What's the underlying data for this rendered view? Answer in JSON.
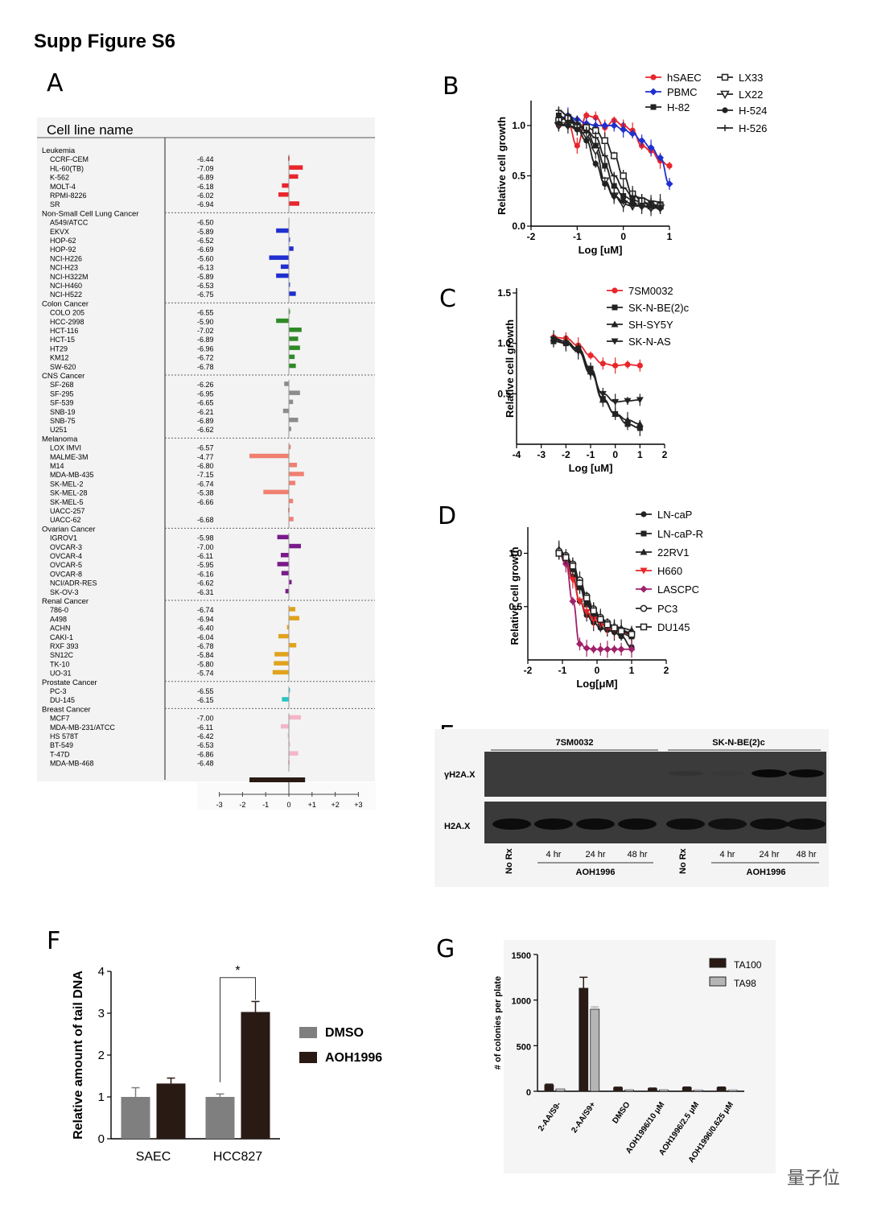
{
  "figure_title": "Supp Figure S6",
  "panel_labels": [
    "A",
    "B",
    "C",
    "D",
    "E",
    "F",
    "G"
  ],
  "watermark": "量子位",
  "chart_data": [
    {
      "panel": "A",
      "type": "bar",
      "header": "Cell line name",
      "axis_ticks": [
        "+3",
        "+2",
        "+1",
        "0",
        "-1",
        "-2",
        "-3"
      ],
      "xlim": [
        3,
        -3
      ],
      "colors": {
        "Leukemia": "#e8262b",
        "Non-Small Cell Lung Cancer": "#1f2fd0",
        "Colon Cancer": "#2f8a25",
        "CNS Cancer": "#8c8c8c",
        "Melanoma": "#f08070",
        "Ovarian Cancer": "#7a1a8a",
        "Renal Cancer": "#e0a31c",
        "Prostate Cancer": "#27c4c4",
        "Breast Cancer": "#f4b6c8"
      },
      "groups": [
        {
          "name": "Leukemia",
          "lines": [
            [
              "CCRF-CEM",
              "-6.44",
              0.0
            ],
            [
              "HL-60(TB)",
              "-7.09",
              0.6
            ],
            [
              "K-562",
              "-6.89",
              0.4
            ],
            [
              "MOLT-4",
              "-6.18",
              -0.3
            ],
            [
              "RPMI-8226",
              "-6.02",
              -0.45
            ],
            [
              "SR",
              "-6.94",
              0.45
            ]
          ]
        },
        {
          "name": "Non-Small Cell Lung Cancer",
          "lines": [
            [
              "A549/ATCC",
              "-6.50",
              0.02
            ],
            [
              "EKVX",
              "-5.89",
              -0.55
            ],
            [
              "HOP-62",
              "-6.52",
              0.05
            ],
            [
              "HOP-92",
              "-6.69",
              0.2
            ],
            [
              "NCI-H226",
              "-5.60",
              -0.85
            ],
            [
              "NCI-H23",
              "-6.13",
              -0.35
            ],
            [
              "NCI-H322M",
              "-5.89",
              -0.55
            ],
            [
              "NCI-H460",
              "-6.53",
              0.05
            ],
            [
              "NCI-H522",
              "-6.75",
              0.3
            ]
          ]
        },
        {
          "name": "Colon Cancer",
          "lines": [
            [
              "COLO 205",
              "-6.55",
              0.05
            ],
            [
              "HCC-2998",
              "-5.90",
              -0.55
            ],
            [
              "HCT-116",
              "-7.02",
              0.55
            ],
            [
              "HCT-15",
              "-6.89",
              0.4
            ],
            [
              "HT29",
              "-6.96",
              0.48
            ],
            [
              "KM12",
              "-6.72",
              0.25
            ],
            [
              "SW-620",
              "-6.78",
              0.3
            ]
          ]
        },
        {
          "name": "CNS Cancer",
          "lines": [
            [
              "SF-268",
              "-6.26",
              -0.2
            ],
            [
              "SF-295",
              "-6.95",
              0.48
            ],
            [
              "SF-539",
              "-6.65",
              0.18
            ],
            [
              "SNB-19",
              "-6.21",
              -0.25
            ],
            [
              "SNB-75",
              "-6.89",
              0.4
            ],
            [
              "U251",
              "-6.62",
              0.1
            ]
          ]
        },
        {
          "name": "Melanoma",
          "lines": [
            [
              "LOX IMVI",
              "-6.57",
              0.08
            ],
            [
              "MALME-3M",
              "-4.77",
              -1.7
            ],
            [
              "M14",
              "-6.80",
              0.35
            ],
            [
              "MDA-MB-435",
              "-7.15",
              0.65
            ],
            [
              "SK-MEL-2",
              "-6.74",
              0.28
            ],
            [
              "SK-MEL-28",
              "-5.38",
              -1.1
            ],
            [
              "SK-MEL-5",
              "-6.66",
              0.18
            ],
            [
              "UACC-257",
              "",
              0.0
            ],
            [
              "UACC-62",
              "-6.68",
              0.2
            ]
          ]
        },
        {
          "name": "Ovarian Cancer",
          "lines": [
            [
              "IGROV1",
              "-5.98",
              -0.5
            ],
            [
              "OVCAR-3",
              "-7.00",
              0.52
            ],
            [
              "OVCAR-4",
              "-6.11",
              -0.35
            ],
            [
              "OVCAR-5",
              "-5.95",
              -0.5
            ],
            [
              "OVCAR-8",
              "-6.16",
              -0.32
            ],
            [
              "NCI/ADR-RES",
              "-6.62",
              0.12
            ],
            [
              "SK-OV-3",
              "-6.31",
              -0.15
            ]
          ]
        },
        {
          "name": "Renal Cancer",
          "lines": [
            [
              "786-0",
              "-6.74",
              0.28
            ],
            [
              "A498",
              "-6.94",
              0.45
            ],
            [
              "ACHN",
              "-6.40",
              -0.08
            ],
            [
              "CAKI-1",
              "-6.04",
              -0.45
            ],
            [
              "RXF 393",
              "-6.78",
              0.32
            ],
            [
              "SN12C",
              "-5.84",
              -0.62
            ],
            [
              "TK-10",
              "-5.80",
              -0.65
            ],
            [
              "UO-31",
              "-5.74",
              -0.7
            ]
          ]
        },
        {
          "name": "Prostate Cancer",
          "lines": [
            [
              "PC-3",
              "-6.55",
              0.05
            ],
            [
              "DU-145",
              "-6.15",
              -0.3
            ]
          ]
        },
        {
          "name": "Breast Cancer",
          "lines": [
            [
              "MCF7",
              "-7.00",
              0.52
            ],
            [
              "MDA-MB-231/ATCC",
              "-6.11",
              -0.35
            ],
            [
              "HS 578T",
              "-6.42",
              -0.05
            ],
            [
              "BT-549",
              "-6.53",
              0.05
            ],
            [
              "T-47D",
              "-6.86",
              0.4
            ],
            [
              "MDA-MB-468",
              "-6.48",
              0.0
            ]
          ]
        }
      ],
      "summary_bar": [
        -1.7,
        0.7
      ]
    },
    {
      "panel": "B",
      "type": "line",
      "xlabel": "Log [uM]",
      "ylabel": "Relative cell growth",
      "xlim": [
        -2,
        1
      ],
      "ylim": [
        0,
        1.2
      ],
      "xticks": [
        "-2",
        "-1",
        "0",
        "1"
      ],
      "yticks": [
        "0.0",
        "0.5",
        "1.0"
      ],
      "x": [
        -1.4,
        -1.2,
        -1.0,
        -0.8,
        -0.6,
        -0.4,
        -0.2,
        0.0,
        0.2,
        0.4,
        0.6,
        0.8,
        1.0
      ],
      "series": [
        {
          "name": "hSAEC",
          "color": "#e8262b",
          "values": [
            1.0,
            1.02,
            0.8,
            1.1,
            1.08,
            0.98,
            1.05,
            1.0,
            0.95,
            0.8,
            0.75,
            0.65,
            0.6
          ]
        },
        {
          "name": "PBMC",
          "color": "#1f2fd0",
          "values": [
            1.05,
            1.1,
            1.06,
            1.02,
            1.0,
            1.0,
            1.0,
            0.96,
            0.92,
            0.85,
            0.78,
            0.68,
            0.42
          ]
        },
        {
          "name": "H-82",
          "color": "#222222",
          "values": [
            1.1,
            1.05,
            1.0,
            0.95,
            0.8,
            0.6,
            0.4,
            0.3,
            0.26,
            0.24,
            0.22,
            0.2,
            null
          ]
        },
        {
          "name": "LX33",
          "color": "#222222",
          "values": [
            1.05,
            1.08,
            1.0,
            0.98,
            0.95,
            0.85,
            0.7,
            0.5,
            0.32,
            0.25,
            0.2,
            0.2,
            null
          ]
        },
        {
          "name": "LX22",
          "color": "#222222",
          "values": [
            1.0,
            1.0,
            0.98,
            0.9,
            0.75,
            0.45,
            0.3,
            0.22,
            0.2,
            0.2,
            0.18,
            0.18,
            null
          ]
        },
        {
          "name": "H-524",
          "color": "#222222",
          "values": [
            1.02,
            1.0,
            0.96,
            0.85,
            0.62,
            0.42,
            0.3,
            0.25,
            0.22,
            0.2,
            0.2,
            0.18,
            null
          ]
        },
        {
          "name": "H-526",
          "color": "#222222",
          "values": [
            1.15,
            1.1,
            1.02,
            0.95,
            0.88,
            0.7,
            0.5,
            0.38,
            0.3,
            0.28,
            0.25,
            0.24,
            null
          ]
        }
      ]
    },
    {
      "panel": "C",
      "type": "line",
      "xlabel": "Log [uM]",
      "ylabel": "Relative cell growth",
      "xlim": [
        -4,
        2
      ],
      "ylim": [
        0,
        1.5
      ],
      "xticks": [
        "-4",
        "-3",
        "-2",
        "-1",
        "0",
        "1",
        "2"
      ],
      "yticks": [
        "0.5",
        "1.0",
        "1.5"
      ],
      "x": [
        -2.5,
        -2.0,
        -1.5,
        -1.0,
        -0.5,
        0.0,
        0.5,
        1.0
      ],
      "series": [
        {
          "name": "7SM0032",
          "color": "#e8262b",
          "values": [
            1.06,
            1.05,
            0.98,
            0.88,
            0.8,
            0.78,
            0.79,
            0.78
          ]
        },
        {
          "name": "SK-N-BE(2)c",
          "color": "#222222",
          "values": [
            1.02,
            1.0,
            0.95,
            0.75,
            0.45,
            0.3,
            0.2,
            0.16
          ]
        },
        {
          "name": "SH-SY5Y",
          "color": "#222222",
          "values": [
            1.05,
            1.02,
            0.94,
            0.72,
            0.44,
            0.3,
            0.24,
            0.2
          ]
        },
        {
          "name": "SK-N-AS",
          "color": "#222222",
          "values": [
            1.04,
            1.0,
            0.92,
            0.7,
            0.5,
            0.42,
            0.43,
            0.44
          ]
        }
      ]
    },
    {
      "panel": "D",
      "type": "line",
      "xlabel": "Log[μM]",
      "ylabel": "Relative cell growth",
      "xlim": [
        -2,
        2
      ],
      "ylim": [
        0,
        1.2
      ],
      "xticks": [
        "-2",
        "-1",
        "0",
        "1",
        "2"
      ],
      "yticks": [
        "0.5",
        "1.0"
      ],
      "x": [
        -1.1,
        -0.9,
        -0.7,
        -0.5,
        -0.3,
        -0.1,
        0.1,
        0.3,
        0.5,
        0.7,
        1.0
      ],
      "series": [
        {
          "name": "LN-caP",
          "color": "#222222",
          "values": [
            1.02,
            0.95,
            0.78,
            0.55,
            0.42,
            0.35,
            0.3,
            0.28,
            0.26,
            0.22,
            0.12
          ]
        },
        {
          "name": "LN-caP-R",
          "color": "#222222",
          "values": [
            1.0,
            0.96,
            0.85,
            0.68,
            0.52,
            0.42,
            0.35,
            0.3,
            0.28,
            0.25,
            0.22
          ]
        },
        {
          "name": "22RV1",
          "color": "#222222",
          "values": [
            1.04,
            0.98,
            0.88,
            0.7,
            0.55,
            0.45,
            0.38,
            0.34,
            0.32,
            0.3,
            0.28
          ]
        },
        {
          "name": "H660",
          "color": "#e8262b",
          "values": [
            1.0,
            0.92,
            0.75,
            0.55,
            0.45,
            0.38,
            0.34,
            0.3,
            0.28,
            0.26,
            0.24
          ]
        },
        {
          "name": "LASCPC",
          "color": "#a0216a",
          "values": [
            1.0,
            0.9,
            0.55,
            0.15,
            0.11,
            0.1,
            0.1,
            0.1,
            0.1,
            0.1,
            0.1
          ]
        },
        {
          "name": "PC3",
          "color": "#222222",
          "values": [
            1.02,
            0.98,
            0.9,
            0.75,
            0.6,
            0.48,
            0.4,
            0.35,
            0.3,
            0.28,
            0.25
          ]
        },
        {
          "name": "DU145",
          "color": "#222222",
          "values": [
            1.0,
            0.96,
            0.88,
            0.72,
            0.58,
            0.46,
            0.38,
            0.33,
            0.3,
            0.27,
            0.24
          ]
        }
      ]
    },
    {
      "panel": "E",
      "type": "table",
      "groups": [
        "7SM0032",
        "SK-N-BE(2)c"
      ],
      "rows": [
        "γH2A.X",
        "H2A.X"
      ],
      "lanes": [
        "No Rx",
        "4 hr",
        "24 hr",
        "48 hr",
        "No Rx",
        "4 hr",
        "24 hr",
        "48 hr"
      ],
      "treatment": "AOH1996",
      "gammaH2AX_intensity": [
        0,
        0,
        0,
        0,
        0.15,
        0.05,
        0.95,
        0.9
      ],
      "H2AX_intensity": [
        0.95,
        0.95,
        0.95,
        0.95,
        0.9,
        0.85,
        0.9,
        0.9
      ]
    },
    {
      "panel": "F",
      "type": "bar",
      "ylabel": "Relative amount of tail DNA",
      "ylim": [
        0,
        4
      ],
      "yticks": [
        "0",
        "1",
        "2",
        "3",
        "4"
      ],
      "categories": [
        "SAEC",
        "HCC827"
      ],
      "series": [
        {
          "name": "DMSO",
          "color": "#7f7f7f",
          "values": [
            1.0,
            1.0
          ],
          "errors": [
            0.22,
            0.07
          ]
        },
        {
          "name": "AOH1996",
          "color": "#2a1a14",
          "values": [
            1.32,
            3.03
          ],
          "errors": [
            0.13,
            0.25
          ]
        }
      ],
      "significance": "*"
    },
    {
      "panel": "G",
      "type": "bar",
      "ylabel": "# of colonies per plate",
      "ylim": [
        0,
        1500
      ],
      "yticks": [
        "0",
        "500",
        "1000",
        "1500"
      ],
      "categories": [
        "2-AA/S9-",
        "2-AA/S9+",
        "DMSO",
        "AOH1996/10 μM",
        "AOH1996/2.5 μM",
        "AOH1996/0.625 μM"
      ],
      "series": [
        {
          "name": "TA100",
          "color": "#2a1a14",
          "values": [
            70,
            1130,
            40,
            30,
            40,
            40
          ],
          "errors": [
            8,
            120,
            5,
            5,
            6,
            6
          ]
        },
        {
          "name": "TA98",
          "color": "#b5b5b5",
          "values": [
            25,
            900,
            15,
            15,
            12,
            12
          ],
          "errors": [
            4,
            25,
            3,
            3,
            3,
            3
          ]
        }
      ]
    }
  ]
}
